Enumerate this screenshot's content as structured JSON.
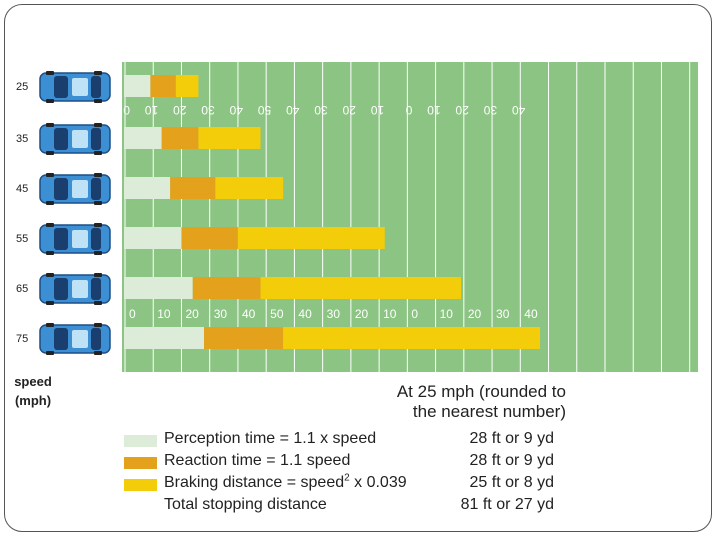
{
  "chart_data": {
    "type": "bar",
    "stacked": true,
    "orientation": "horizontal",
    "axis_title_line1": "speed",
    "axis_title_line2": "(mph)",
    "categories": [
      "25",
      "35",
      "45",
      "55",
      "65",
      "75"
    ],
    "series": [
      {
        "name": "Perception time",
        "color": "#dcecd8",
        "values": [
          9,
          13,
          16,
          20,
          24,
          28
        ]
      },
      {
        "name": "Reaction time",
        "color": "#e4a11b",
        "values": [
          9,
          13,
          16,
          20,
          24,
          28
        ]
      },
      {
        "name": "Braking distance",
        "color": "#f4cd0a",
        "values": [
          8,
          22,
          24,
          52,
          71,
          91
        ]
      }
    ],
    "x_unit": "yd",
    "xlim": [
      0,
      180
    ],
    "yard_numbers_top": [
      "0",
      "10",
      "20",
      "30",
      "40",
      "50",
      "40",
      "30",
      "20",
      "10",
      "0",
      "10",
      "20",
      "30",
      "40"
    ],
    "yard_numbers_bottom": [
      "0",
      "10",
      "20",
      "30",
      "40",
      "50",
      "40",
      "30",
      "20",
      "10",
      "0",
      "10",
      "20",
      "30",
      "40"
    ],
    "field_color": "#8cc484",
    "grid": true
  },
  "legend": {
    "heading_line1": "At 25 mph (rounded to",
    "heading_line2": "the nearest number)",
    "items": [
      {
        "label": "Perception time  = 1.1 x speed",
        "value": "28 ft or 9 yd",
        "color": "#dcecd8"
      },
      {
        "label": "Reaction time = 1.1 speed",
        "value": "28 ft or 9 yd",
        "color": "#e4a11b"
      },
      {
        "label_before": "Braking distance = speed",
        "label_sup": "2",
        "label_after": " x 0.039",
        "value": "25 ft or 8 yd",
        "color": "#f4cd0a"
      },
      {
        "label": "Total stopping distance",
        "value": "81 ft or 27 yd"
      }
    ]
  },
  "icons": {
    "car": "car-icon"
  }
}
